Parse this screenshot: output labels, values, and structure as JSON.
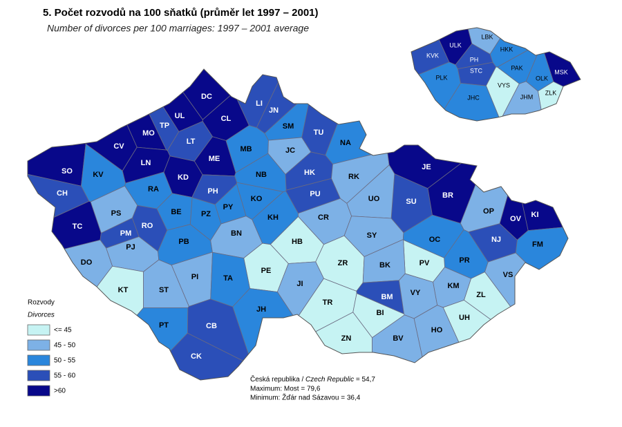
{
  "header": {
    "title": "5. Počet rozvodů na 100 sňatků (průměr let 1997 – 2001)",
    "subtitle": "Number of divorces per 100 marriages: 1997 – 2001 average"
  },
  "legend": {
    "title": "Rozvody",
    "title_en": "Divorces",
    "classes": [
      {
        "label": "<= 45",
        "color": "#c6f3f3"
      },
      {
        "label": "45 - 50",
        "color": "#7db1e6"
      },
      {
        "label": "50 - 55",
        "color": "#2a86dc"
      },
      {
        "label": "55 - 60",
        "color": "#2b4fb8"
      },
      {
        "label": ">60",
        "color": "#08088a"
      }
    ]
  },
  "districts": [
    {
      "label": "DC",
      "class": 4
    },
    {
      "label": "CL",
      "class": 4
    },
    {
      "label": "LI",
      "class": 3
    },
    {
      "label": "JN",
      "class": 3
    },
    {
      "label": "UL",
      "class": 4
    },
    {
      "label": "TP",
      "class": 3
    },
    {
      "label": "MO",
      "class": 4
    },
    {
      "label": "CV",
      "class": 4
    },
    {
      "label": "LT",
      "class": 3
    },
    {
      "label": "SO",
      "class": 4
    },
    {
      "label": "KV",
      "class": 2
    },
    {
      "label": "LN",
      "class": 4
    },
    {
      "label": "KD",
      "class": 4
    },
    {
      "label": "ME",
      "class": 4
    },
    {
      "label": "MB",
      "class": 2
    },
    {
      "label": "SM",
      "class": 2
    },
    {
      "label": "JC",
      "class": 1
    },
    {
      "label": "TU",
      "class": 3
    },
    {
      "label": "NA",
      "class": 2
    },
    {
      "label": "HK",
      "class": 3
    },
    {
      "label": "NB",
      "class": 2
    },
    {
      "label": "RK",
      "class": 1
    },
    {
      "label": "CH",
      "class": 3
    },
    {
      "label": "RA",
      "class": 2
    },
    {
      "label": "PH",
      "class": 3
    },
    {
      "label": "KO",
      "class": 2
    },
    {
      "label": "PU",
      "class": 3
    },
    {
      "label": "SU",
      "class": 3
    },
    {
      "label": "JE",
      "class": 4
    },
    {
      "label": "BR",
      "class": 4
    },
    {
      "label": "OP",
      "class": 1
    },
    {
      "label": "OV",
      "class": 4
    },
    {
      "label": "KI",
      "class": 4
    },
    {
      "label": "FM",
      "class": 2
    },
    {
      "label": "PS",
      "class": 1
    },
    {
      "label": "BE",
      "class": 2
    },
    {
      "label": "PZ",
      "class": 2
    },
    {
      "label": "PY",
      "class": 2
    },
    {
      "label": "KH",
      "class": 2
    },
    {
      "label": "CR",
      "class": 1
    },
    {
      "label": "UO",
      "class": 1
    },
    {
      "label": "TC",
      "class": 4
    },
    {
      "label": "PM",
      "class": 3
    },
    {
      "label": "RO",
      "class": 3
    },
    {
      "label": "BN",
      "class": 1
    },
    {
      "label": "SY",
      "class": 1
    },
    {
      "label": "OC",
      "class": 2
    },
    {
      "label": "NJ",
      "class": 3
    },
    {
      "label": "PJ",
      "class": 1
    },
    {
      "label": "PB",
      "class": 2
    },
    {
      "label": "HB",
      "class": 0
    },
    {
      "label": "PR",
      "class": 2
    },
    {
      "label": "DO",
      "class": 1
    },
    {
      "label": "ZR",
      "class": 0
    },
    {
      "label": "PE",
      "class": 0
    },
    {
      "label": "PV",
      "class": 0
    },
    {
      "label": "BK",
      "class": 1
    },
    {
      "label": "VS",
      "class": 1
    },
    {
      "label": "PI",
      "class": 1
    },
    {
      "label": "TA",
      "class": 2
    },
    {
      "label": "KM",
      "class": 1
    },
    {
      "label": "JI",
      "class": 1
    },
    {
      "label": "KT",
      "class": 0
    },
    {
      "label": "ST",
      "class": 1
    },
    {
      "label": "BM",
      "class": 3
    },
    {
      "label": "VY",
      "class": 1
    },
    {
      "label": "ZL",
      "class": 0
    },
    {
      "label": "TR",
      "class": 0
    },
    {
      "label": "JH",
      "class": 2
    },
    {
      "label": "BI",
      "class": 0
    },
    {
      "label": "UH",
      "class": 0
    },
    {
      "label": "PT",
      "class": 2
    },
    {
      "label": "CB",
      "class": 3
    },
    {
      "label": "HO",
      "class": 1
    },
    {
      "label": "ZN",
      "class": 0
    },
    {
      "label": "BV",
      "class": 1
    },
    {
      "label": "CK",
      "class": 3
    }
  ],
  "regions": [
    {
      "label": "ULK",
      "class": 4
    },
    {
      "label": "LBK",
      "class": 1
    },
    {
      "label": "HKK",
      "class": 2
    },
    {
      "label": "PH",
      "class": 3
    },
    {
      "label": "KVK",
      "class": 3
    },
    {
      "label": "STC",
      "class": 3
    },
    {
      "label": "PAK",
      "class": 2
    },
    {
      "label": "MSK",
      "class": 4
    },
    {
      "label": "PLK",
      "class": 2
    },
    {
      "label": "OLK",
      "class": 2
    },
    {
      "label": "VYS",
      "class": 0
    },
    {
      "label": "ZLK",
      "class": 0
    },
    {
      "label": "JHC",
      "class": 2
    },
    {
      "label": "JHM",
      "class": 1
    }
  ],
  "summary": {
    "country_cz": "Česká republika / ",
    "country_en": "Czech Republic",
    "country_value": " = 54,7",
    "max": "Maximum: Most  = 79,6",
    "min": "Minimum: Žďár nad Sázavou = 36,4"
  }
}
